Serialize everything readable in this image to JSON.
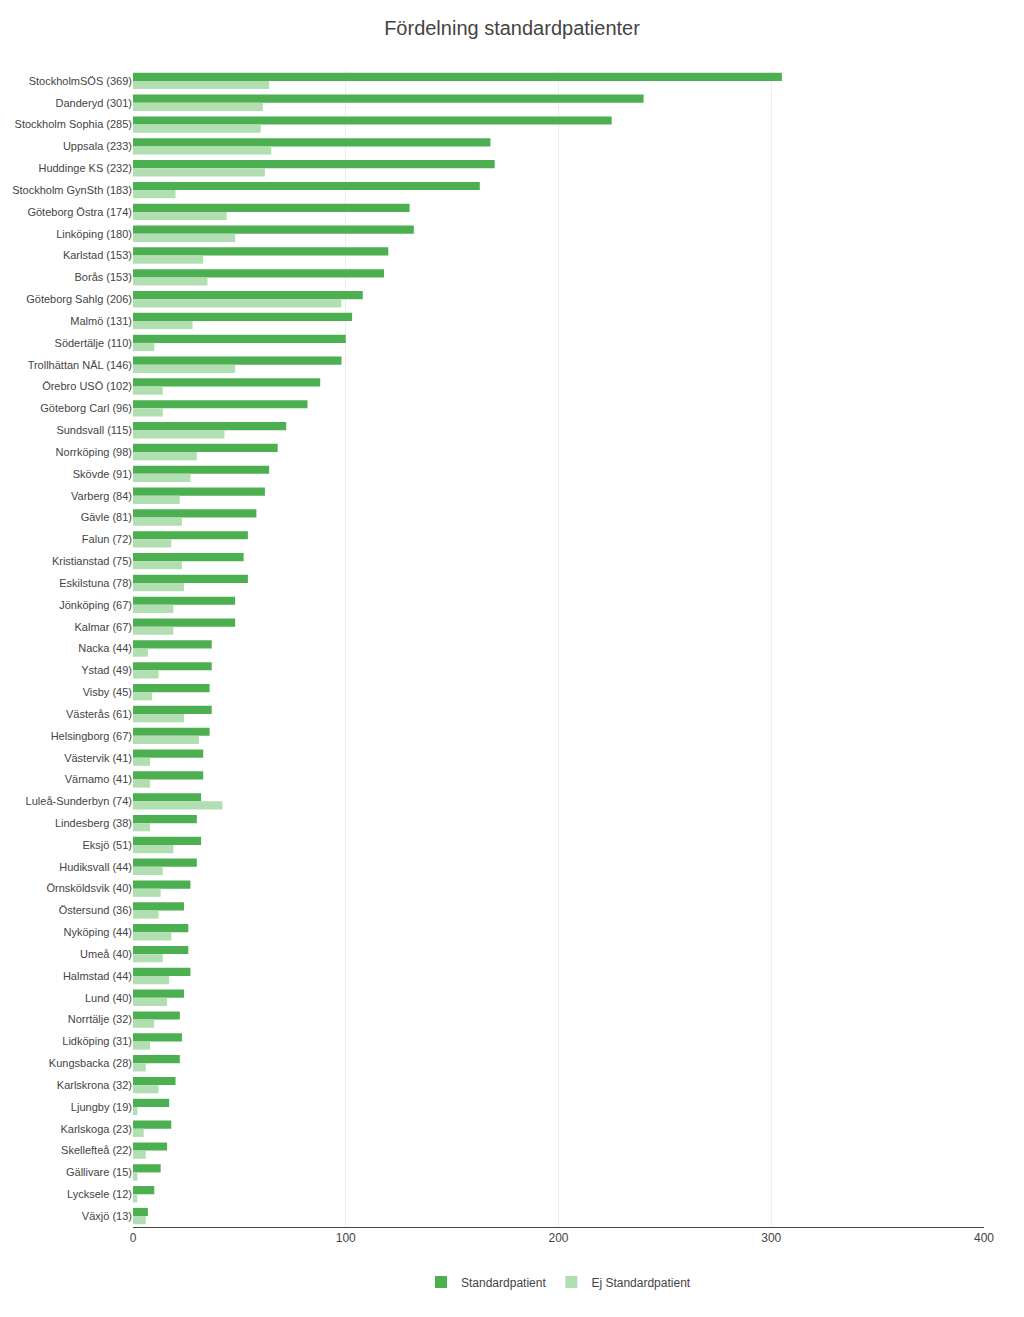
{
  "chart_data": {
    "type": "bar",
    "title": "Fördelning standardpatienter",
    "orientation": "horizontal",
    "categories": [
      "StockholmSÖS (369)",
      "Danderyd (301)",
      "Stockholm Sophia (285)",
      "Uppsala (233)",
      "Huddinge KS (232)",
      "Stockholm GynSth (183)",
      "Göteborg Östra (174)",
      "Linköping (180)",
      "Karlstad (153)",
      "Borås (153)",
      "Göteborg Sahlg (206)",
      "Malmö (131)",
      "Södertälje (110)",
      "Trollhättan NÄL (146)",
      "Örebro USÖ (102)",
      "Göteborg Carl (96)",
      "Sundsvall (115)",
      "Norrköping (98)",
      "Skövde (91)",
      "Varberg (84)",
      "Gävle (81)",
      "Falun (72)",
      "Kristianstad (75)",
      "Eskilstuna (78)",
      "Jönköping (67)",
      "Kalmar (67)",
      "Nacka (44)",
      "Ystad (49)",
      "Visby (45)",
      "Västerås (61)",
      "Helsingborg (67)",
      "Västervik (41)",
      "Värnamo (41)",
      "Luleå-Sunderbyn (74)",
      "Lindesberg (38)",
      "Eksjö (51)",
      "Hudiksvall (44)",
      "Örnsköldsvik (40)",
      "Östersund (36)",
      "Nyköping (44)",
      "Umeå (40)",
      "Halmstad (44)",
      "Lund (40)",
      "Norrtälje (32)",
      "Lidköping (31)",
      "Kungsbacka (28)",
      "Karlskrona (32)",
      "Ljungby (19)",
      "Karlskoga (23)",
      "Skellefteå (22)",
      "Gällivare (15)",
      "Lycksele (12)",
      "Växjö (13)"
    ],
    "series": [
      {
        "name": "Standardpatient",
        "color": "#4caf50",
        "values": [
          305,
          240,
          225,
          168,
          170,
          163,
          130,
          132,
          120,
          118,
          108,
          103,
          100,
          98,
          88,
          82,
          72,
          68,
          64,
          62,
          58,
          54,
          52,
          54,
          48,
          48,
          37,
          37,
          36,
          37,
          36,
          33,
          33,
          32,
          30,
          32,
          30,
          27,
          24,
          26,
          26,
          27,
          24,
          22,
          23,
          22,
          20,
          17,
          18,
          16,
          13,
          10,
          7
        ]
      },
      {
        "name": "Ej Standardpatient",
        "color": "#b2dfb2",
        "values": [
          64,
          61,
          60,
          65,
          62,
          20,
          44,
          48,
          33,
          35,
          98,
          28,
          10,
          48,
          14,
          14,
          43,
          30,
          27,
          22,
          23,
          18,
          23,
          24,
          19,
          19,
          7,
          12,
          9,
          24,
          31,
          8,
          8,
          42,
          8,
          19,
          14,
          13,
          12,
          18,
          14,
          17,
          16,
          10,
          8,
          6,
          12,
          2,
          5,
          6,
          2,
          2,
          6
        ]
      }
    ],
    "xlim": [
      0,
      400
    ],
    "xticks": [
      0,
      100,
      200,
      300,
      400
    ],
    "grid": true,
    "legend": "bottom"
  }
}
